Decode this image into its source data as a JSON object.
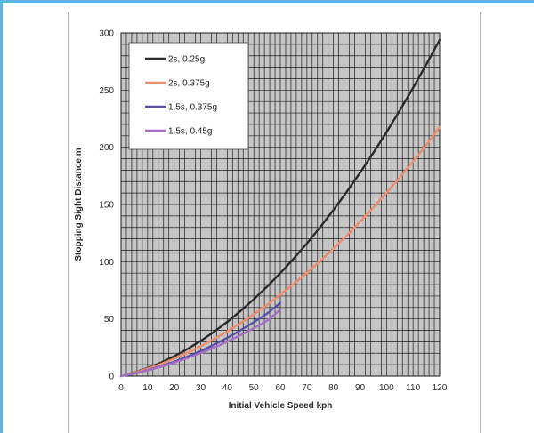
{
  "chart_data": {
    "type": "line",
    "title": "",
    "xlabel": "Initial Vehicle Speed kph",
    "ylabel": "Stopping Sight Distance m",
    "xlim": [
      0,
      120
    ],
    "ylim": [
      0,
      300
    ],
    "xticks": [
      "0",
      "10",
      "20",
      "30",
      "40",
      "50",
      "60",
      "70",
      "80",
      "90",
      "100",
      "110",
      "120"
    ],
    "yticks": [
      "0",
      "50",
      "100",
      "150",
      "200",
      "250",
      "300"
    ],
    "grid": true,
    "legend_position": "top-left",
    "plot_background": "#c6c6c6",
    "grid_color": "#1f1f1f",
    "series": [
      {
        "name": "2s, 0.25g",
        "color": "#2b2b2b",
        "x": [
          0,
          5,
          10,
          15,
          20,
          25,
          30,
          35,
          40,
          45,
          50,
          55,
          60,
          65,
          70,
          75,
          80,
          85,
          90,
          95,
          100,
          105,
          110,
          115,
          120
        ],
        "y": [
          0,
          3.2,
          7.1,
          11.8,
          17.4,
          23.7,
          30.8,
          38.7,
          47.4,
          56.9,
          67.2,
          78.2,
          90.0,
          102.6,
          116.0,
          130.2,
          145.2,
          161.0,
          177.6,
          195.0,
          213.2,
          232.2,
          251.9,
          272.5,
          293.8
        ]
      },
      {
        "name": "2s, 0.375g",
        "color": "#f08c6c",
        "x": [
          0,
          5,
          10,
          15,
          20,
          25,
          30,
          35,
          40,
          45,
          50,
          55,
          60,
          65,
          70,
          75,
          80,
          85,
          90,
          95,
          100,
          105,
          110,
          115,
          120
        ],
        "y": [
          0,
          3.0,
          6.6,
          10.6,
          15.3,
          20.5,
          26.1,
          32.3,
          39.0,
          46.3,
          54.0,
          62.3,
          71.1,
          80.4,
          90.3,
          100.6,
          111.5,
          122.9,
          134.8,
          147.3,
          160.2,
          173.7,
          187.7,
          202.3,
          217.3
        ]
      },
      {
        "name": "1.5s, 0.375g",
        "color": "#5a4fa8",
        "x": [
          0,
          5,
          10,
          15,
          20,
          25,
          30,
          35,
          40,
          45,
          50,
          55,
          60
        ],
        "y": [
          0,
          2.3,
          5.2,
          8.6,
          12.5,
          17.0,
          21.9,
          27.4,
          33.5,
          40.0,
          47.1,
          54.7,
          64.0
        ]
      },
      {
        "name": "1.5s, 0.45g",
        "color": "#a56fc8",
        "x": [
          0,
          5,
          10,
          15,
          20,
          25,
          30,
          35,
          40,
          45,
          50,
          55,
          60
        ],
        "y": [
          0,
          2.3,
          5.0,
          8.1,
          11.7,
          15.7,
          20.1,
          24.9,
          30.1,
          35.8,
          41.9,
          48.4,
          58.0
        ]
      }
    ]
  }
}
